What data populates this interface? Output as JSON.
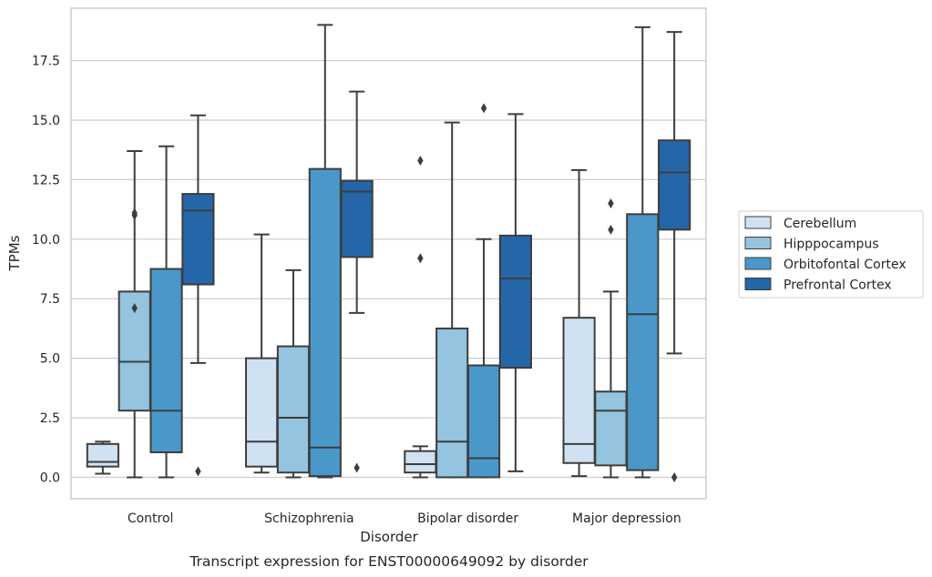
{
  "chart_data": {
    "type": "box",
    "xlabel": "Disorder",
    "ylabel": "TPMs",
    "caption": "Transcript expression for ENST00000649092 by disorder",
    "ylim": [
      -0.9,
      19.7
    ],
    "yticks": [
      "0.0",
      "2.5",
      "5.0",
      "7.5",
      "10.0",
      "12.5",
      "15.0",
      "17.5"
    ],
    "grid": "horizontal",
    "legend_position": "right",
    "categories": [
      "Control",
      "Schizophrenia",
      "Bipolar disorder",
      "Major depression"
    ],
    "series": [
      {
        "name": "Cerebellum",
        "color": "#d0e1f2",
        "boxes": [
          {
            "whislo": 0.15,
            "q1": 0.45,
            "med": 0.65,
            "q3": 1.4,
            "whishi": 1.5,
            "fliers": []
          },
          {
            "whislo": 0.2,
            "q1": 0.45,
            "med": 1.5,
            "q3": 5.0,
            "whishi": 10.2,
            "fliers": []
          },
          {
            "whislo": 0.0,
            "q1": 0.2,
            "med": 0.55,
            "q3": 1.1,
            "whishi": 1.3,
            "fliers": [
              9.2,
              13.3
            ]
          },
          {
            "whislo": 0.05,
            "q1": 0.6,
            "med": 1.4,
            "q3": 6.7,
            "whishi": 12.9,
            "fliers": []
          }
        ]
      },
      {
        "name": "Hipppocampus",
        "color": "#94c4df",
        "boxes": [
          {
            "whislo": 0.0,
            "q1": 2.8,
            "med": 4.85,
            "q3": 7.8,
            "whishi": 13.7,
            "fliers": [
              7.1,
              11.0,
              11.1
            ]
          },
          {
            "whislo": 0.0,
            "q1": 0.2,
            "med": 2.5,
            "q3": 5.5,
            "whishi": 8.7,
            "fliers": []
          },
          {
            "whislo": 0.0,
            "q1": 0.0,
            "med": 1.5,
            "q3": 6.25,
            "whishi": 14.9,
            "fliers": []
          },
          {
            "whislo": 0.0,
            "q1": 0.5,
            "med": 2.8,
            "q3": 3.6,
            "whishi": 7.8,
            "fliers": [
              10.4,
              11.5
            ]
          }
        ]
      },
      {
        "name": "Orbitofontal Cortex",
        "color": "#4a98c9",
        "boxes": [
          {
            "whislo": 0.0,
            "q1": 1.05,
            "med": 2.8,
            "q3": 8.75,
            "whishi": 13.9,
            "fliers": []
          },
          {
            "whislo": 0.0,
            "q1": 0.05,
            "med": 1.25,
            "q3": 12.95,
            "whishi": 19.0,
            "fliers": []
          },
          {
            "whislo": 0.0,
            "q1": 0.0,
            "med": 0.8,
            "q3": 4.7,
            "whishi": 10.0,
            "fliers": [
              15.5
            ]
          },
          {
            "whislo": 0.0,
            "q1": 0.3,
            "med": 6.85,
            "q3": 11.05,
            "whishi": 18.9,
            "fliers": []
          }
        ]
      },
      {
        "name": "Prefrontal Cortex",
        "color": "#2466a7",
        "boxes": [
          {
            "whislo": 4.8,
            "q1": 8.1,
            "med": 11.2,
            "q3": 11.9,
            "whishi": 15.2,
            "fliers": [
              0.25
            ]
          },
          {
            "whislo": 6.9,
            "q1": 9.25,
            "med": 12.0,
            "q3": 12.45,
            "whishi": 16.2,
            "fliers": [
              0.4
            ]
          },
          {
            "whislo": 0.25,
            "q1": 4.6,
            "med": 8.35,
            "q3": 10.15,
            "whishi": 15.25,
            "fliers": []
          },
          {
            "whislo": 5.2,
            "q1": 10.4,
            "med": 12.8,
            "q3": 14.15,
            "whishi": 18.7,
            "fliers": [
              0.0
            ]
          }
        ]
      }
    ]
  }
}
